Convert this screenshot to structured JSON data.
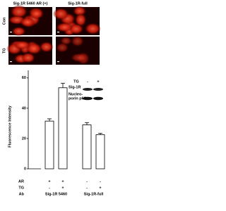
{
  "image_panels": {
    "column_labels": [
      "Sig-1R 5460 AR (+)",
      "Sig-1R-full"
    ],
    "row_labels": [
      "Con",
      "TG"
    ]
  },
  "blot": {
    "lane_header": "TG",
    "lanes": [
      "-",
      "+"
    ],
    "bands": [
      [
        "Sig-1R"
      ],
      [
        "Nucleo-",
        "porin p62"
      ]
    ]
  },
  "chart_data": {
    "type": "bar",
    "y_label": "Fluorescence Intensity",
    "categories": [
      null,
      null,
      null,
      null
    ],
    "values": [
      31.5,
      53.5,
      29,
      22.5
    ],
    "errors": [
      1.5,
      3,
      1.5,
      1
    ],
    "color": "#ffffff",
    "ylim": [
      0,
      65
    ],
    "yticks": [
      0,
      20,
      40,
      60
    ],
    "conditions": [
      {
        "label": "AR",
        "values": [
          "+",
          "+",
          "-",
          "-"
        ]
      },
      {
        "label": "TG",
        "values": [
          "-",
          "+",
          "-",
          "+"
        ]
      }
    ],
    "groups": {
      "label": "Ab",
      "names": [
        "Sig-1R 5460",
        "Sig-1R-full"
      ]
    }
  }
}
